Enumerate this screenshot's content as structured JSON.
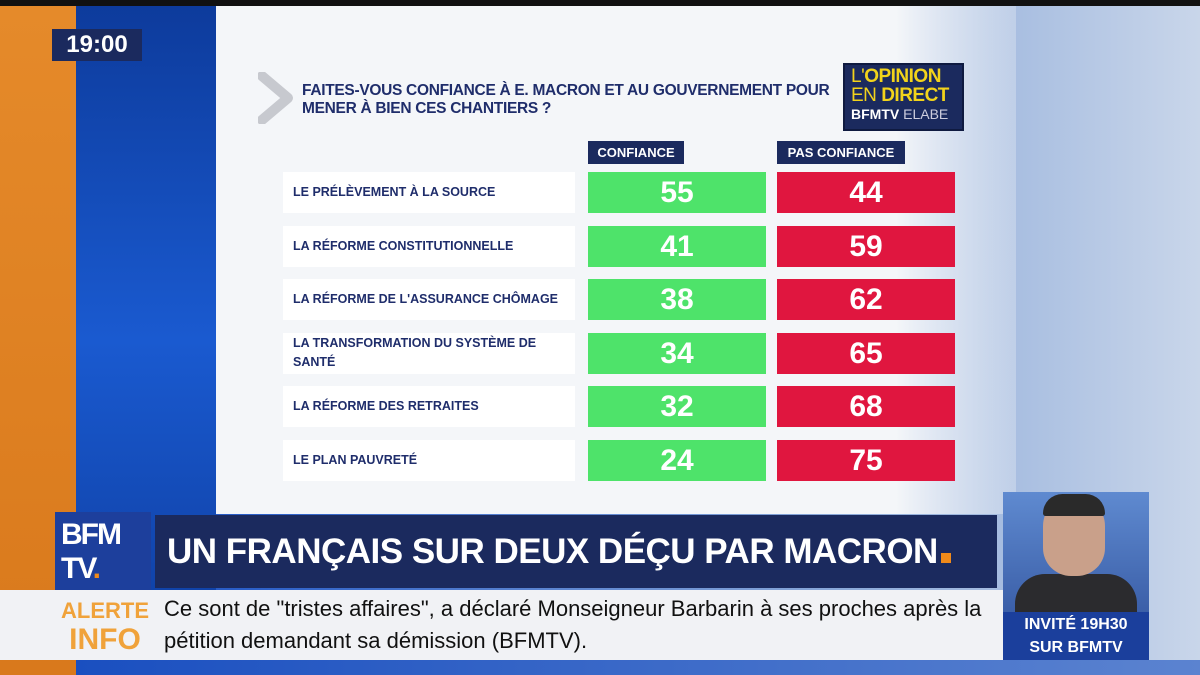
{
  "clock": "19:00",
  "question": "FAITES-VOUS CONFIANCE À E. MACRON ET AU GOUVERNEMENT POUR MENER À BIEN CES CHANTIERS ?",
  "logo": {
    "line1a": "L'",
    "line1b": "OPINION",
    "line2a": "EN ",
    "line2b": "DIRECT",
    "line3a": "BFMTV",
    "line3b": " ELABE"
  },
  "chart_data": {
    "type": "table",
    "title": "FAITES-VOUS CONFIANCE À E. MACRON ET AU GOUVERNEMENT POUR MENER À BIEN CES CHANTIERS ?",
    "columns": [
      "CONFIANCE",
      "PAS CONFIANCE"
    ],
    "rows": [
      {
        "label": "LE PRÉLÈVEMENT À LA SOURCE",
        "confiance": 55,
        "pas_confiance": 44
      },
      {
        "label": "LA RÉFORME CONSTITUTIONNELLE",
        "confiance": 41,
        "pas_confiance": 59
      },
      {
        "label": "LA RÉFORME DE L'ASSURANCE CHÔMAGE",
        "confiance": 38,
        "pas_confiance": 62
      },
      {
        "label": "LA TRANSFORMATION DU SYSTÈME DE SANTÉ",
        "confiance": 34,
        "pas_confiance": 65
      },
      {
        "label": "LA RÉFORME DES RETRAITES",
        "confiance": 32,
        "pas_confiance": 68
      },
      {
        "label": "LE PLAN PAUVRETÉ",
        "confiance": 24,
        "pas_confiance": 75
      }
    ],
    "colors": {
      "confiance": "#4ee36a",
      "pas_confiance": "#e0163f",
      "header": "#1b2a5e"
    }
  },
  "channel_logo": {
    "l1": "BFM",
    "l2": "TV",
    "dot": "."
  },
  "headline": "UN FRANÇAIS SUR DEUX DÉÇU PAR MACRON",
  "alert": {
    "l1": "ALERTE",
    "l2": "INFO"
  },
  "ticker": "Ce sont de \"tristes affaires\", a déclaré Monseigneur Barbarin à ses proches après la pétition demandant sa démission (BFMTV).",
  "guest": {
    "l1": "INVITÉ 19H30",
    "l2": "SUR BFMTV"
  }
}
